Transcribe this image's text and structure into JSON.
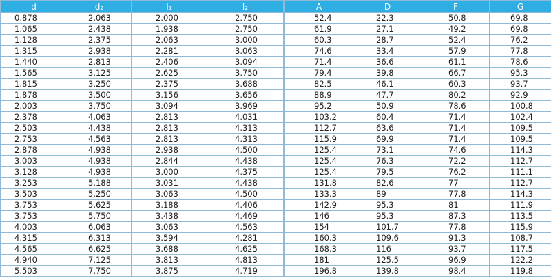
{
  "table": {
    "header": [
      "d",
      "d₂",
      "l₁",
      "l₂",
      "A",
      "D",
      "F",
      "G"
    ],
    "rows": [
      [
        "0.878",
        "2.063",
        "2.000",
        "2.750",
        "52.4",
        "22.3",
        "50.8",
        "69.8"
      ],
      [
        "1.065",
        "2.438",
        "1.938",
        "2.750",
        "61.9",
        "27.1",
        "49.2",
        "69.8"
      ],
      [
        "1.128",
        "2.375",
        "2.063",
        "3.000",
        "60.3",
        "28.7",
        "52.4",
        "76.2"
      ],
      [
        "1.315",
        "2.938",
        "2.281",
        "3.063",
        "74.6",
        "33.4",
        "57.9",
        "77.8"
      ],
      [
        "1.440",
        "2.813",
        "2.406",
        "3.094",
        "71.4",
        "36.6",
        "61.1",
        "78.6"
      ],
      [
        "1.565",
        "3.125",
        "2.625",
        "3.750",
        "79.4",
        "39.8",
        "66.7",
        "95.3"
      ],
      [
        "1.815",
        "3.250",
        "2.375",
        "3.688",
        "82.5",
        "46.1",
        "60.3",
        "93.7"
      ],
      [
        "1.878",
        "3.500",
        "3.156",
        "3.656",
        "88.9",
        "47.7",
        "80.2",
        "92.9"
      ],
      [
        "2.003",
        "3.750",
        "3.094",
        "3.969",
        "95.2",
        "50.9",
        "78.6",
        "100.8"
      ],
      [
        "2.378",
        "4.063",
        "2.813",
        "4.031",
        "103.2",
        "60.4",
        "71.4",
        "102.4"
      ],
      [
        "2.503",
        "4.438",
        "2.813",
        "4.313",
        "112.7",
        "63.6",
        "71.4",
        "109.5"
      ],
      [
        "2.753",
        "4.563",
        "2.813",
        "4.313",
        "115.9",
        "69.9",
        "71.4",
        "109.5"
      ],
      [
        "2.878",
        "4.938",
        "2.938",
        "4.500",
        "125.4",
        "73.1",
        "74.6",
        "114.3"
      ],
      [
        "3.003",
        "4.938",
        "2.844",
        "4.438",
        "125.4",
        "76.3",
        "72.2",
        "112.7"
      ],
      [
        "3.128",
        "4.938",
        "3.000",
        "4.375",
        "125.4",
        "79.5",
        "76.2",
        "111.1"
      ],
      [
        "3.253",
        "5.188",
        "3.031",
        "4.438",
        "131.8",
        "82.6",
        "77",
        "112.7"
      ],
      [
        "3.503",
        "5.250",
        "3.063",
        "4.500",
        "133.3",
        "89",
        "77.8",
        "114.3"
      ],
      [
        "3.753",
        "5.625",
        "3.188",
        "4.406",
        "142.9",
        "95.3",
        "81",
        "111.9"
      ],
      [
        "3.753",
        "5.750",
        "3.438",
        "4.469",
        "146",
        "95.3",
        "87.3",
        "113.5"
      ],
      [
        "4.003",
        "6.063",
        "3.063",
        "4.563",
        "154",
        "101.7",
        "77.8",
        "115.9"
      ],
      [
        "4.315",
        "6.313",
        "3.594",
        "4.281",
        "160.3",
        "109.6",
        "91.3",
        "108.7"
      ],
      [
        "4.565",
        "6.625",
        "3.688",
        "4.625",
        "168.3",
        "116",
        "93.7",
        "117.5"
      ],
      [
        "4.940",
        "7.125",
        "3.813",
        "4.813",
        "181",
        "125.5",
        "96.9",
        "122.2"
      ],
      [
        "5.503",
        "7.750",
        "3.875",
        "4.719",
        "196.8",
        "139.8",
        "98.4",
        "119.8"
      ]
    ]
  }
}
